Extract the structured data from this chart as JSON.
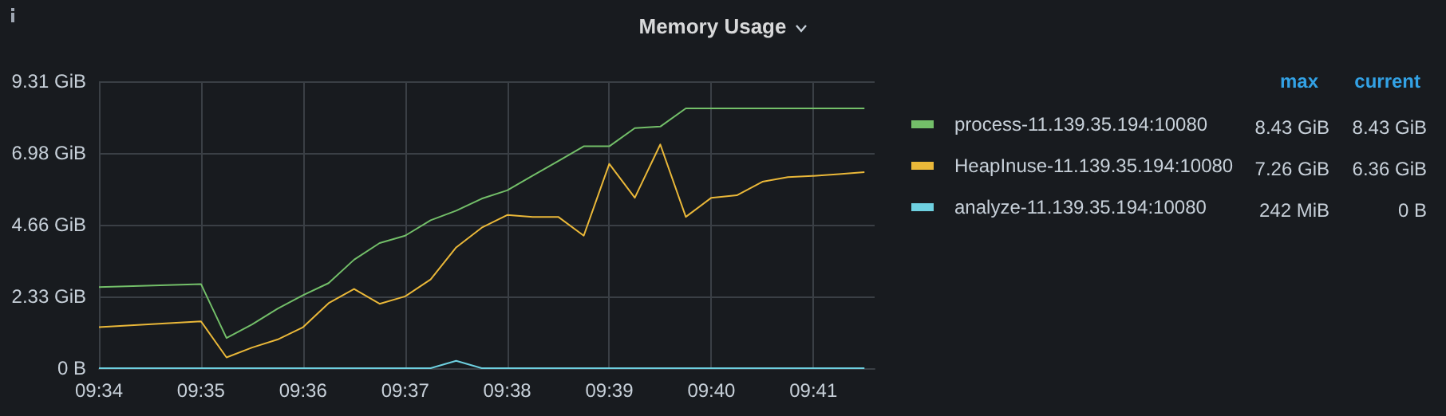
{
  "chart_data": {
    "type": "line",
    "title": "Memory Usage",
    "x": [
      9.56667,
      9.58333,
      9.5875,
      9.59167,
      9.59583,
      9.6,
      9.60417,
      9.60833,
      9.6125,
      9.61667,
      9.62083,
      9.625,
      9.62917,
      9.63333,
      9.6375,
      9.64167,
      9.64583,
      9.65,
      9.65417,
      9.65833,
      9.6625,
      9.66667,
      9.67083,
      9.675,
      9.67917,
      9.68333,
      9.6875,
      9.69167
    ],
    "series": [
      {
        "name": "process-11.139.35.194:10080",
        "color": "#73bf69",
        "values": [
          2.63,
          2.73,
          0.98,
          1.42,
          1.93,
          2.37,
          2.76,
          3.52,
          4.06,
          4.3,
          4.8,
          5.11,
          5.5,
          5.77,
          6.25,
          6.72,
          7.2,
          7.2,
          7.79,
          7.84,
          8.43,
          8.43,
          8.43,
          8.43,
          8.43,
          8.43,
          8.43,
          8.43
        ]
      },
      {
        "name": "HeapInuse-11.139.35.194:10080",
        "color": "#eab839",
        "values": [
          1.33,
          1.52,
          0.35,
          0.67,
          0.93,
          1.33,
          2.11,
          2.57,
          2.09,
          2.33,
          2.88,
          3.92,
          4.56,
          4.97,
          4.91,
          4.91,
          4.3,
          6.63,
          5.53,
          7.26,
          4.91,
          5.53,
          5.61,
          6.05,
          6.2,
          6.24,
          6.3,
          6.36
        ]
      },
      {
        "name": "analyze-11.139.35.194:10080",
        "color": "#6ed0e0",
        "values": [
          0,
          0,
          0,
          0,
          0,
          0,
          0,
          0,
          0,
          0,
          0,
          0.24,
          0,
          0,
          0,
          0,
          0,
          0,
          0,
          0,
          0,
          0,
          0,
          0,
          0,
          0,
          0,
          0
        ]
      }
    ],
    "xlim": [
      9.56667,
      9.69333
    ],
    "xticks": [
      {
        "value": 9.56667,
        "label": "09:34"
      },
      {
        "value": 9.58333,
        "label": "09:35"
      },
      {
        "value": 9.6,
        "label": "09:36"
      },
      {
        "value": 9.61667,
        "label": "09:37"
      },
      {
        "value": 9.63333,
        "label": "09:38"
      },
      {
        "value": 9.65,
        "label": "09:39"
      },
      {
        "value": 9.66667,
        "label": "09:40"
      },
      {
        "value": 9.68333,
        "label": "09:41"
      }
    ],
    "ylim": [
      0,
      9.31
    ],
    "yticks": [
      {
        "value": 0,
        "label": "0 B"
      },
      {
        "value": 2.33,
        "label": "2.33 GiB"
      },
      {
        "value": 4.66,
        "label": "4.66 GiB"
      },
      {
        "value": 6.98,
        "label": "6.98 GiB"
      },
      {
        "value": 9.31,
        "label": "9.31 GiB"
      }
    ],
    "grid": true,
    "legend": "right",
    "marker": "none",
    "line_style": "solid",
    "annotations": [
      "max",
      "current",
      "8.43 GiB",
      "8.43 GiB",
      "7.26 GiB",
      "6.36 GiB",
      "242 MiB",
      "0 B"
    ]
  }
}
